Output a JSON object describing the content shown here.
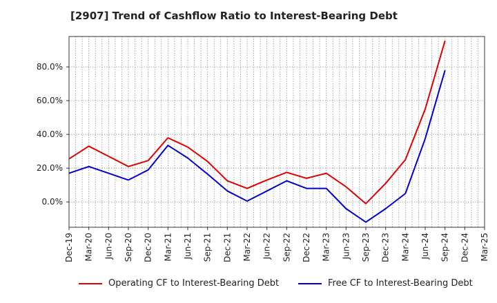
{
  "chart_data": {
    "type": "line",
    "title": "[2907]  Trend of Cashflow Ratio to Interest-Bearing Debt",
    "xlabel": "",
    "ylabel": "",
    "x": [
      "Dec-19",
      "Mar-20",
      "Jun-20",
      "Sep-20",
      "Dec-20",
      "Mar-21",
      "Jun-21",
      "Sep-21",
      "Dec-21",
      "Mar-22",
      "Jun-22",
      "Sep-22",
      "Dec-22",
      "Mar-23",
      "Jun-23",
      "Sep-23",
      "Dec-23",
      "Mar-24",
      "Jun-24",
      "Sep-24"
    ],
    "x_ticks": [
      "Dec-19",
      "Mar-20",
      "Jun-20",
      "Sep-20",
      "Dec-20",
      "Mar-21",
      "Jun-21",
      "Sep-21",
      "Dec-21",
      "Mar-22",
      "Jun-22",
      "Sep-22",
      "Dec-22",
      "Mar-23",
      "Jun-23",
      "Sep-23",
      "Dec-23",
      "Mar-24",
      "Jun-24",
      "Sep-24",
      "Dec-24",
      "Mar-25"
    ],
    "ylim": [
      -15,
      98
    ],
    "y_ticks": [
      0,
      20,
      40,
      60,
      80
    ],
    "y_tick_labels": [
      "0.0%",
      "20.0%",
      "40.0%",
      "60.0%",
      "80.0%"
    ],
    "grid": true,
    "legend_position": "bottom",
    "series": [
      {
        "name": "Operating CF to Interest-Bearing Debt",
        "color": "#e00000",
        "values": [
          25.5,
          33.0,
          27.0,
          21.0,
          24.5,
          38.0,
          32.5,
          24.0,
          12.5,
          8.0,
          13.0,
          17.5,
          14.0,
          17.0,
          9.0,
          -1.0,
          11.0,
          25.0,
          55.0,
          95.5
        ]
      },
      {
        "name": "Free CF to Interest-Bearing Debt",
        "color": "#0000cc",
        "values": [
          17.0,
          21.0,
          17.0,
          13.0,
          19.0,
          33.5,
          26.0,
          16.5,
          6.5,
          0.5,
          6.5,
          12.5,
          8.0,
          8.0,
          -4.0,
          -12.0,
          -4.0,
          5.0,
          37.5,
          78.0
        ]
      }
    ]
  }
}
